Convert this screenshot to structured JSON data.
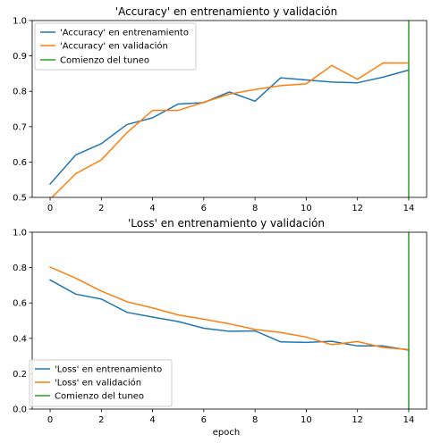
{
  "chart_data": [
    {
      "type": "line",
      "title": "'Accuracy' en entrenamiento y validación",
      "xlabel": "",
      "ylabel": "",
      "xlim": [
        -0.7,
        14.7
      ],
      "ylim": [
        0.5,
        1.0
      ],
      "xticks": [
        0,
        2,
        4,
        6,
        8,
        10,
        12,
        14
      ],
      "yticks": [
        0.5,
        0.6,
        0.7,
        0.8,
        0.9,
        1.0
      ],
      "x": [
        0,
        1,
        2,
        3,
        4,
        5,
        6,
        7,
        8,
        9,
        10,
        11,
        12,
        13,
        14
      ],
      "series": [
        {
          "name": "'Accuracy' en entrenamiento",
          "color": "#1f77b4",
          "values": [
            0.538,
            0.62,
            0.652,
            0.706,
            0.725,
            0.764,
            0.768,
            0.798,
            0.772,
            0.838,
            0.832,
            0.826,
            0.824,
            0.84,
            0.86
          ]
        },
        {
          "name": "'Accuracy' en validación",
          "color": "#ff7f0e",
          "values": [
            0.495,
            0.567,
            0.606,
            0.683,
            0.746,
            0.746,
            0.769,
            0.792,
            0.805,
            0.816,
            0.821,
            0.873,
            0.834,
            0.88,
            0.88
          ]
        }
      ],
      "vline": {
        "name": "Comienzo del tuneo",
        "color": "#2ca02c",
        "x": 14
      },
      "legend": "upper left",
      "grid": false
    },
    {
      "type": "line",
      "title": "'Loss' en entrenamiento y validación",
      "xlabel": "epoch",
      "ylabel": "",
      "xlim": [
        -0.7,
        14.7
      ],
      "ylim": [
        0.0,
        1.0
      ],
      "xticks": [
        0,
        2,
        4,
        6,
        8,
        10,
        12,
        14
      ],
      "yticks": [
        0.0,
        0.2,
        0.4,
        0.6,
        0.8,
        1.0
      ],
      "x": [
        0,
        1,
        2,
        3,
        4,
        5,
        6,
        7,
        8,
        9,
        10,
        11,
        12,
        13,
        14
      ],
      "series": [
        {
          "name": "'Loss' en entrenamiento",
          "color": "#1f77b4",
          "values": [
            0.73,
            0.65,
            0.622,
            0.547,
            0.52,
            0.495,
            0.457,
            0.44,
            0.442,
            0.38,
            0.377,
            0.383,
            0.357,
            0.357,
            0.333
          ]
        },
        {
          "name": "'Loss' en validación",
          "color": "#ff7f0e",
          "values": [
            0.803,
            0.74,
            0.667,
            0.607,
            0.572,
            0.532,
            0.508,
            0.482,
            0.45,
            0.433,
            0.407,
            0.364,
            0.382,
            0.348,
            0.337
          ]
        }
      ],
      "vline": {
        "name": "Comienzo del tuneo",
        "color": "#2ca02c",
        "x": 14
      },
      "legend": "lower left",
      "grid": false
    }
  ]
}
